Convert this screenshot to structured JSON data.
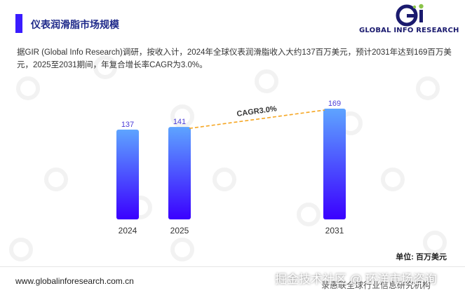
{
  "header": {
    "title": "仪表润滑脂市场规模",
    "accent_color": "#3a1cff"
  },
  "logo": {
    "icon": "global-info-research-logo",
    "text": "GLOBAL INFO RESEARCH",
    "colors": [
      "#1a1a6e",
      "#8bc34a"
    ]
  },
  "description": "据GIR (Global Info Research)调研，按收入计，2024年全球仪表润滑脂收入大约137百万美元，预计2031年达到169百万美元，2025至2031期间，年复合增长率CAGR为3.0%。",
  "chart_data": {
    "type": "bar",
    "categories": [
      "2024",
      "2025",
      "2031"
    ],
    "values": [
      137,
      141,
      169
    ],
    "ylim": [
      0,
      169
    ],
    "grid": false,
    "legend": "none",
    "bar_gradient": [
      "#5ea4ff",
      "#3a00ff"
    ],
    "annotation": {
      "text": "CAGR3.0%",
      "from": "2025",
      "to": "2031",
      "line_color": "#f5a623",
      "style": "dashed"
    },
    "unit": "单位: 百万美元"
  },
  "footer": {
    "url": "www.globalinforesearch.com.cn",
    "overlay_text": "掘金技术社区 @ 环洋市场咨询",
    "overlay_under": "录惠联全球行业信息研究机构"
  }
}
